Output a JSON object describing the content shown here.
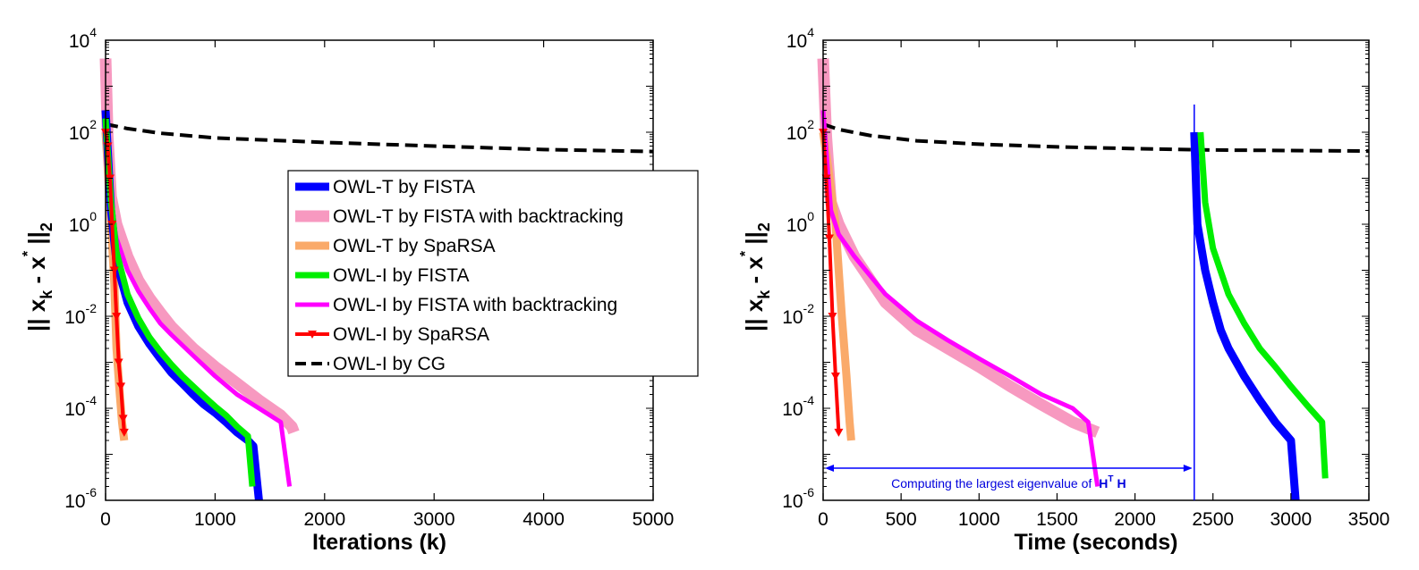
{
  "chart_data": [
    {
      "type": "line",
      "title": "",
      "xlabel": "Iterations (k)",
      "ylabel": "|| x_k - x* ||_2",
      "ylabel_parts": {
        "open": "|| ",
        "x1": "x",
        "sub_k": "k",
        "dash": " - ",
        "x2": "x",
        "star": "*",
        "close": " ||",
        "sub_2": "2"
      },
      "xscale": "linear",
      "yscale": "log",
      "xlim": [
        0,
        5000
      ],
      "ylim": [
        1e-06,
        10000
      ],
      "xticks": [
        "0",
        "1000",
        "2000",
        "3000",
        "4000",
        "5000"
      ],
      "yticks": [
        {
          "base": "10",
          "exp": "-6"
        },
        {
          "base": "10",
          "exp": "-4"
        },
        {
          "base": "10",
          "exp": "-2"
        },
        {
          "base": "10",
          "exp": "0"
        },
        {
          "base": "10",
          "exp": "2"
        },
        {
          "base": "10",
          "exp": "4"
        }
      ],
      "legend_position": "center-right",
      "series": [
        {
          "name": "OWL-T by FISTA",
          "color": "#0000ff",
          "width": 9,
          "style": "solid",
          "x": [
            0,
            50,
            100,
            200,
            300,
            400,
            500,
            600,
            700,
            800,
            900,
            1000,
            1100,
            1200,
            1300,
            1350,
            1400
          ],
          "y": [
            300,
            2,
            0.15,
            0.02,
            0.006,
            0.0025,
            0.0012,
            0.0006,
            0.00035,
            0.0002,
            0.00012,
            8e-05,
            5e-05,
            3e-05,
            2e-05,
            1.5e-05,
            1e-06
          ]
        },
        {
          "name": "OWL-T by FISTA with backtracking",
          "color": "#f799c0",
          "width": 13,
          "style": "solid",
          "x": [
            0,
            20,
            50,
            100,
            200,
            300,
            400,
            500,
            600,
            800,
            1000,
            1200,
            1400,
            1600,
            1700,
            1720
          ],
          "y": [
            4000,
            80,
            4,
            1,
            0.2,
            0.06,
            0.025,
            0.012,
            0.006,
            0.002,
            0.0008,
            0.00035,
            0.00015,
            7e-05,
            4e-05,
            3e-05
          ]
        },
        {
          "name": "OWL-T by SpaRSA",
          "color": "#faaa6a",
          "width": 9,
          "style": "solid",
          "x": [
            0,
            20,
            50,
            80,
            100,
            130,
            150,
            170
          ],
          "y": [
            100,
            20,
            1,
            0.05,
            0.002,
            0.0002,
            5e-05,
            2e-05
          ]
        },
        {
          "name": "OWL-I by FISTA",
          "color": "#00ee00",
          "width": 7,
          "style": "solid",
          "x": [
            0,
            50,
            100,
            200,
            300,
            400,
            500,
            600,
            700,
            800,
            900,
            1000,
            1100,
            1200,
            1300,
            1340
          ],
          "y": [
            200,
            3,
            0.25,
            0.03,
            0.009,
            0.0035,
            0.0017,
            0.0009,
            0.0005,
            0.0003,
            0.00018,
            0.00011,
            7e-05,
            4e-05,
            2.5e-05,
            2e-06
          ]
        },
        {
          "name": "OWL-I by FISTA with backtracking",
          "color": "#ff00ff",
          "width": 5,
          "style": "solid",
          "x": [
            0,
            50,
            100,
            200,
            300,
            400,
            500,
            600,
            800,
            1000,
            1200,
            1400,
            1600,
            1680
          ],
          "y": [
            300,
            2,
            0.5,
            0.1,
            0.035,
            0.015,
            0.007,
            0.004,
            0.0014,
            0.0005,
            0.0002,
            0.0001,
            5e-05,
            2e-06
          ]
        },
        {
          "name": "OWL-I by SpaRSA",
          "color": "#ff0000",
          "width": 4,
          "style": "solid-markers",
          "x": [
            0,
            20,
            40,
            60,
            80,
            100,
            120,
            140,
            160,
            170
          ],
          "y": [
            100,
            50,
            10,
            1,
            0.1,
            0.01,
            0.001,
            0.0003,
            6e-05,
            3e-05
          ]
        },
        {
          "name": "OWL-I by CG",
          "color": "#000000",
          "width": 4,
          "style": "dashed",
          "x": [
            0,
            200,
            500,
            1000,
            2000,
            3000,
            4000,
            5000
          ],
          "y": [
            150,
            120,
            95,
            75,
            60,
            50,
            42,
            38
          ]
        }
      ]
    },
    {
      "type": "line",
      "title": "",
      "xlabel": "Time (seconds)",
      "ylabel": "|| x_k - x* ||_2",
      "ylabel_parts": {
        "open": "|| ",
        "x1": "x",
        "sub_k": "k",
        "dash": " - ",
        "x2": "x",
        "star": "*",
        "close": " ||",
        "sub_2": "2"
      },
      "xscale": "linear",
      "yscale": "log",
      "xlim": [
        0,
        3500
      ],
      "ylim": [
        1e-06,
        10000
      ],
      "xticks": [
        "0",
        "500",
        "1000",
        "1500",
        "2000",
        "2500",
        "3000",
        "3500"
      ],
      "yticks": [
        {
          "base": "10",
          "exp": "-6"
        },
        {
          "base": "10",
          "exp": "-4"
        },
        {
          "base": "10",
          "exp": "-2"
        },
        {
          "base": "10",
          "exp": "0"
        },
        {
          "base": "10",
          "exp": "2"
        },
        {
          "base": "10",
          "exp": "4"
        }
      ],
      "annotation": {
        "text": "Computing the largest eigenvalue of",
        "math_H": "H",
        "math_T": "T",
        "math_H2": "H",
        "x_start": 0,
        "x_end": 2380,
        "y": 5e-06,
        "vline_x": 2380
      },
      "series": [
        {
          "name": "OWL-T by FISTA",
          "color": "#0000ff",
          "width": 9,
          "x": [
            2380,
            2400,
            2450,
            2500,
            2550,
            2600,
            2700,
            2800,
            2900,
            3000,
            3030
          ],
          "y": [
            100,
            1,
            0.1,
            0.02,
            0.005,
            0.002,
            0.0005,
            0.00015,
            5e-05,
            2e-05,
            1e-06
          ]
        },
        {
          "name": "OWL-T by FISTA with backtracking",
          "color": "#f799c0",
          "width": 13,
          "x": [
            0,
            20,
            50,
            100,
            200,
            400,
            600,
            800,
            1000,
            1200,
            1400,
            1600,
            1760
          ],
          "y": [
            4000,
            80,
            3,
            1,
            0.2,
            0.02,
            0.005,
            0.002,
            0.0008,
            0.0003,
            0.00012,
            5e-05,
            3e-05
          ]
        },
        {
          "name": "OWL-T by SpaRSA",
          "color": "#faaa6a",
          "width": 9,
          "x": [
            0,
            30,
            80,
            120,
            150,
            170,
            180
          ],
          "y": [
            100,
            20,
            1,
            0.01,
            0.0005,
            5e-05,
            2e-05
          ]
        },
        {
          "name": "OWL-I by FISTA",
          "color": "#00ee00",
          "width": 7,
          "x": [
            2420,
            2450,
            2500,
            2600,
            2700,
            2800,
            2900,
            3000,
            3100,
            3200,
            3220
          ],
          "y": [
            100,
            3,
            0.3,
            0.03,
            0.007,
            0.002,
            0.0008,
            0.0003,
            0.00012,
            5e-05,
            3e-06
          ]
        },
        {
          "name": "OWL-I by FISTA with backtracking",
          "color": "#ff00ff",
          "width": 5,
          "x": [
            0,
            50,
            100,
            200,
            400,
            600,
            800,
            1000,
            1200,
            1400,
            1600,
            1700,
            1760
          ],
          "y": [
            300,
            2,
            0.6,
            0.2,
            0.03,
            0.008,
            0.003,
            0.0012,
            0.0005,
            0.0002,
            0.0001,
            5e-05,
            2e-06
          ]
        },
        {
          "name": "OWL-I by SpaRSA",
          "color": "#ff0000",
          "width": 4,
          "x": [
            0,
            20,
            40,
            60,
            80,
            100
          ],
          "y": [
            100,
            10,
            0.5,
            0.01,
            0.0005,
            3e-05
          ]
        },
        {
          "name": "OWL-I by CG",
          "color": "#000000",
          "width": 4,
          "x": [
            0,
            100,
            300,
            600,
            1000,
            1500,
            2000,
            2500,
            3000,
            3500
          ],
          "y": [
            150,
            115,
            85,
            65,
            55,
            48,
            44,
            41,
            40,
            39
          ]
        }
      ]
    }
  ]
}
